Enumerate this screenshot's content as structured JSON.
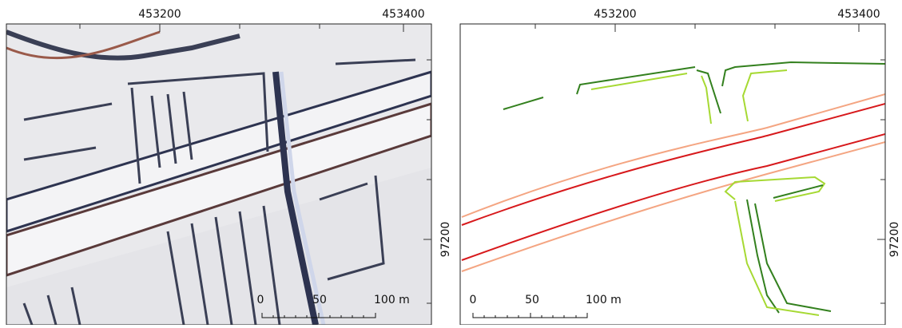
{
  "panels": [
    {
      "x_labels": [
        "453200",
        "453400"
      ],
      "y_label": "97200",
      "scale": [
        "0",
        "50",
        "100 m"
      ]
    },
    {
      "x_labels": [
        "453200",
        "453400"
      ],
      "y_label": "97200",
      "scale": [
        "0",
        "50",
        "100 m"
      ]
    }
  ]
}
